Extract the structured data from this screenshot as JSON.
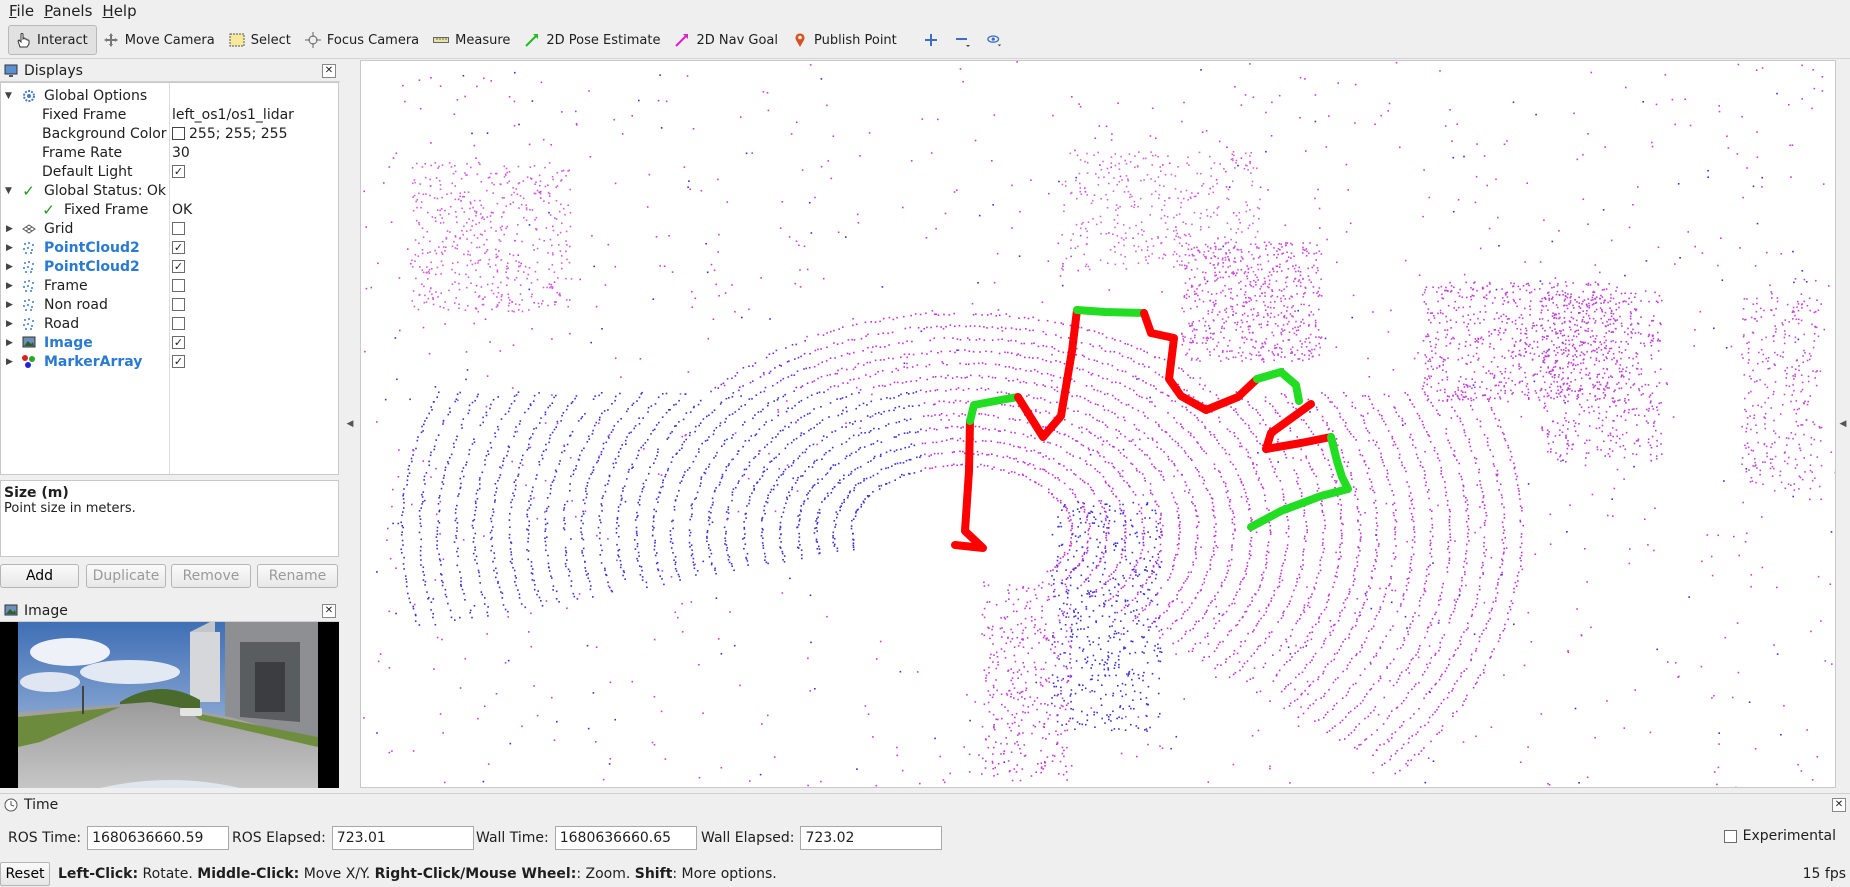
{
  "menubar": {
    "file_u": "F",
    "file_rest": "ile",
    "panels_u": "P",
    "panels_rest": "anels",
    "help_u": "H",
    "help_rest": "elp"
  },
  "toolbar": {
    "interact": "Interact",
    "move_camera": "Move Camera",
    "select": "Select",
    "focus_camera": "Focus Camera",
    "measure": "Measure",
    "pose_estimate": "2D Pose Estimate",
    "nav_goal": "2D Nav Goal",
    "publish_point": "Publish Point"
  },
  "displays": {
    "title": "Displays",
    "global_options": "Global Options",
    "fixed_frame_label": "Fixed Frame",
    "fixed_frame_value": "left_os1/os1_lidar",
    "bg_color_label": "Background Color",
    "bg_color_value": "255; 255; 255",
    "frame_rate_label": "Frame Rate",
    "frame_rate_value": "30",
    "default_light_label": "Default Light",
    "global_status": "Global Status: Ok",
    "status_fixed_frame": "Fixed Frame",
    "status_fixed_frame_value": "OK",
    "items": [
      {
        "label": "Grid",
        "checked": false,
        "highlight": false
      },
      {
        "label": "PointCloud2",
        "checked": true,
        "highlight": true
      },
      {
        "label": "PointCloud2",
        "checked": true,
        "highlight": true
      },
      {
        "label": "Frame",
        "checked": false,
        "highlight": false
      },
      {
        "label": "Non road",
        "checked": false,
        "highlight": false
      },
      {
        "label": "Road",
        "checked": false,
        "highlight": false
      },
      {
        "label": "Image",
        "checked": true,
        "highlight": true
      },
      {
        "label": "MarkerArray",
        "checked": true,
        "highlight": true
      }
    ]
  },
  "description": {
    "title": "Size (m)",
    "text": "Point size in meters."
  },
  "buttons": {
    "add": "Add",
    "duplicate": "Duplicate",
    "remove": "Remove",
    "rename": "Rename"
  },
  "image_panel": {
    "title": "Image"
  },
  "time": {
    "title": "Time",
    "ros_time_label": "ROS Time:",
    "ros_time": "1680636660.59",
    "ros_elapsed_label": "ROS Elapsed:",
    "ros_elapsed": "723.01",
    "wall_time_label": "Wall Time:",
    "wall_time": "1680636660.65",
    "wall_elapsed_label": "Wall Elapsed:",
    "wall_elapsed": "723.02",
    "experimental": "Experimental"
  },
  "status": {
    "reset": "Reset",
    "left_click": "Left-Click:",
    "left_click_action": " Rotate. ",
    "middle_click": "Middle-Click:",
    "middle_click_action": " Move X/Y. ",
    "right_click": "Right-Click/Mouse Wheel:",
    "right_click_action": ": Zoom. ",
    "shift": "Shift",
    "shift_action": ": More options.",
    "fps": "15 fps"
  },
  "colors": {
    "accent_blue": "#2a7ad3",
    "marker_red": "#ff0000",
    "marker_green": "#22dd22",
    "points_magenta": "#cc33cc",
    "points_blue": "#3333dd"
  }
}
